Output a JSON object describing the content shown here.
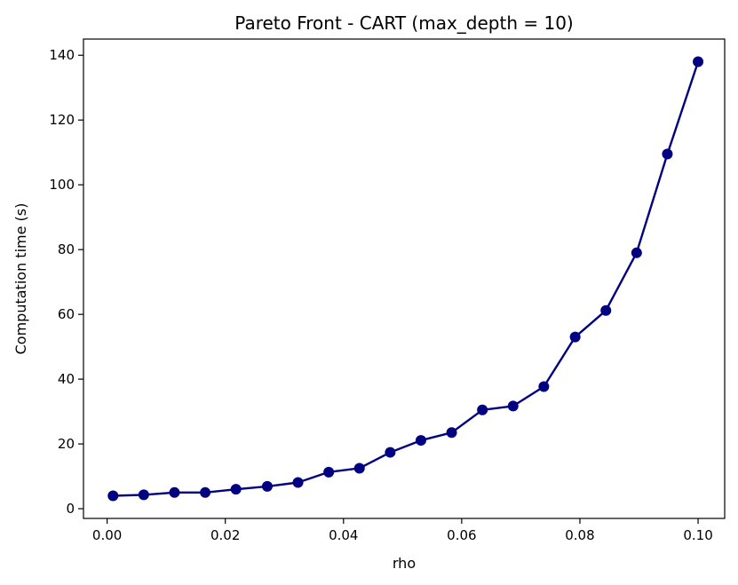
{
  "chart_data": {
    "type": "line",
    "title": "Pareto Front - CART (max_depth = 10)",
    "xlabel": "rho",
    "ylabel": "Computation time (s)",
    "xlim": [
      -0.004,
      0.1045
    ],
    "ylim": [
      -3,
      145
    ],
    "xticks": [
      0.0,
      0.02,
      0.04,
      0.06,
      0.08,
      0.1
    ],
    "xtick_labels": [
      "0.00",
      "0.02",
      "0.04",
      "0.06",
      "0.08",
      "0.10"
    ],
    "yticks": [
      0,
      20,
      40,
      60,
      80,
      100,
      120,
      140
    ],
    "ytick_labels": [
      "0",
      "20",
      "40",
      "60",
      "80",
      "100",
      "120",
      "140"
    ],
    "grid": false,
    "legend": "none",
    "color": "#000080",
    "series": [
      {
        "x": [
          0.001,
          0.0062,
          0.0114,
          0.0166,
          0.0218,
          0.0271,
          0.0323,
          0.0375,
          0.0427,
          0.0479,
          0.0531,
          0.0583,
          0.0635,
          0.0687,
          0.0739,
          0.0792,
          0.0844,
          0.0896,
          0.0948,
          0.1
        ],
        "y": [
          4.0,
          4.3,
          5.0,
          5.0,
          6.0,
          6.9,
          8.1,
          11.3,
          12.5,
          17.4,
          21.1,
          23.5,
          30.5,
          31.7,
          37.7,
          53.0,
          61.2,
          79.0,
          109.5,
          138.0
        ]
      }
    ]
  }
}
